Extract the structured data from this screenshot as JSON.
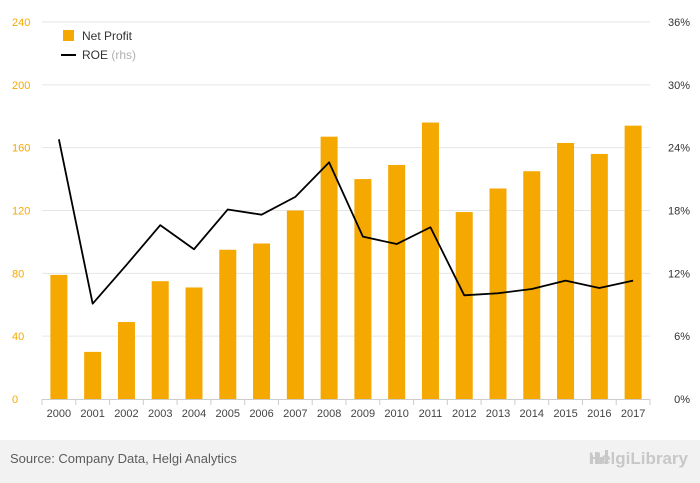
{
  "chart_data": {
    "type": "bar",
    "categories": [
      "2000",
      "2001",
      "2002",
      "2003",
      "2004",
      "2005",
      "2006",
      "2007",
      "2008",
      "2009",
      "2010",
      "2011",
      "2012",
      "2013",
      "2014",
      "2015",
      "2016",
      "2017"
    ],
    "series": [
      {
        "name": "Net Profit",
        "type": "bar",
        "axis": "left",
        "color": "#f5a800",
        "values": [
          79,
          30,
          49,
          75,
          71,
          95,
          99,
          120,
          167,
          140,
          149,
          176,
          119,
          134,
          145,
          163,
          156,
          174
        ]
      },
      {
        "name": "ROE",
        "name_suffix": "(rhs)",
        "type": "line",
        "axis": "right",
        "color": "#000000",
        "values": [
          24.8,
          9.1,
          12.8,
          16.6,
          14.3,
          18.1,
          17.6,
          19.3,
          22.6,
          15.5,
          14.8,
          16.4,
          9.9,
          10.1,
          10.5,
          11.3,
          10.6,
          11.3
        ]
      }
    ],
    "left_axis": {
      "ticks": [
        "0",
        "40",
        "80",
        "120",
        "160",
        "200",
        "240"
      ],
      "ylim": [
        0,
        240
      ]
    },
    "right_axis": {
      "ticks": [
        "0%",
        "6%",
        "12%",
        "18%",
        "24%",
        "30%",
        "36%"
      ],
      "ylim": [
        0,
        36
      ]
    },
    "grid": true,
    "legend_position": "top-left"
  },
  "footer": {
    "source": "Source: Company Data, Helgi Analytics",
    "brand": "HelgiLibrary",
    "brand_icon": "helgi-logo-icon"
  }
}
